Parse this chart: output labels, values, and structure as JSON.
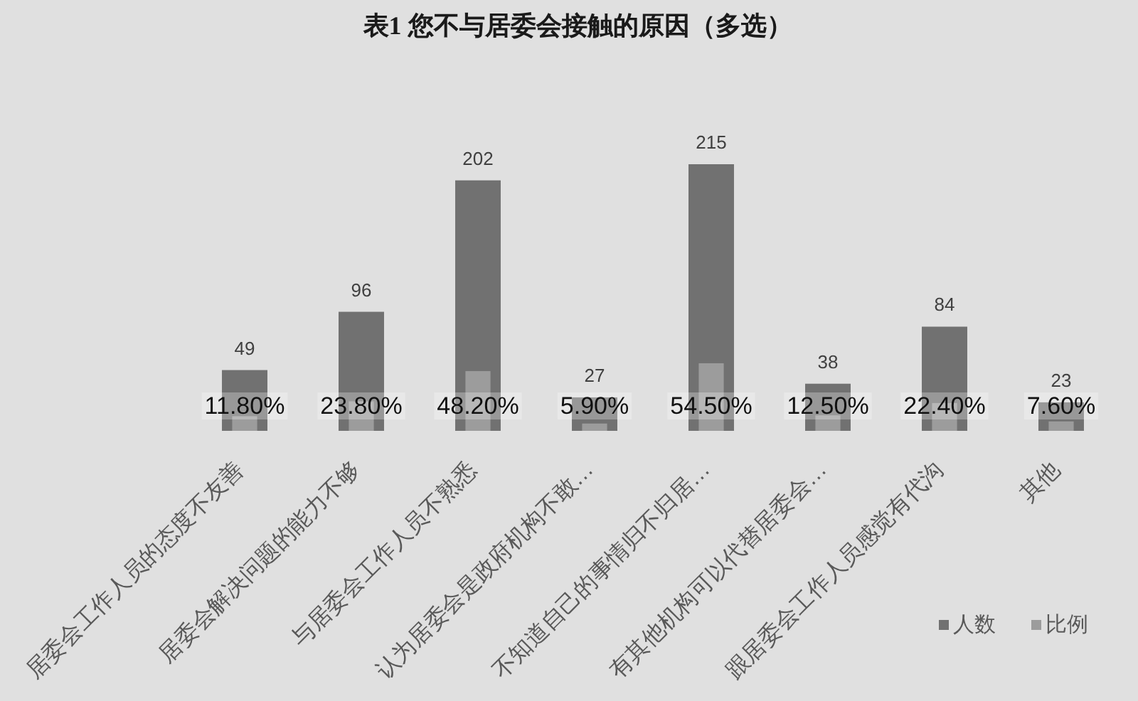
{
  "chart_data": {
    "type": "bar",
    "title": "表1 您不与居委会接触的原因（多选）",
    "categories": [
      "居委会工作人员的态度不友善",
      "居委会解决问题的能力不够",
      "与居委会工作人员不熟悉",
      "认为居委会是政府机构不敢…",
      "不知道自己的事情归不归居…",
      "有其他机构可以代替居委会…",
      "跟居委会工作人员感觉有代沟",
      "其他"
    ],
    "series": [
      {
        "name": "人数",
        "color": "#717171",
        "values": [
          49,
          96,
          202,
          27,
          215,
          38,
          84,
          23
        ],
        "value_labels": [
          "49",
          "96",
          "202",
          "27",
          "215",
          "38",
          "84",
          "23"
        ]
      },
      {
        "name": "比例",
        "color": "#9c9c9c",
        "values": [
          11.8,
          23.8,
          48.2,
          5.9,
          54.5,
          12.5,
          22.4,
          7.6
        ],
        "value_labels": [
          "11.80%",
          "23.80%",
          "48.20%",
          "5.90%",
          "54.50%",
          "12.50%",
          "22.40%",
          "7.60%"
        ]
      }
    ],
    "legend": "bottom right"
  }
}
